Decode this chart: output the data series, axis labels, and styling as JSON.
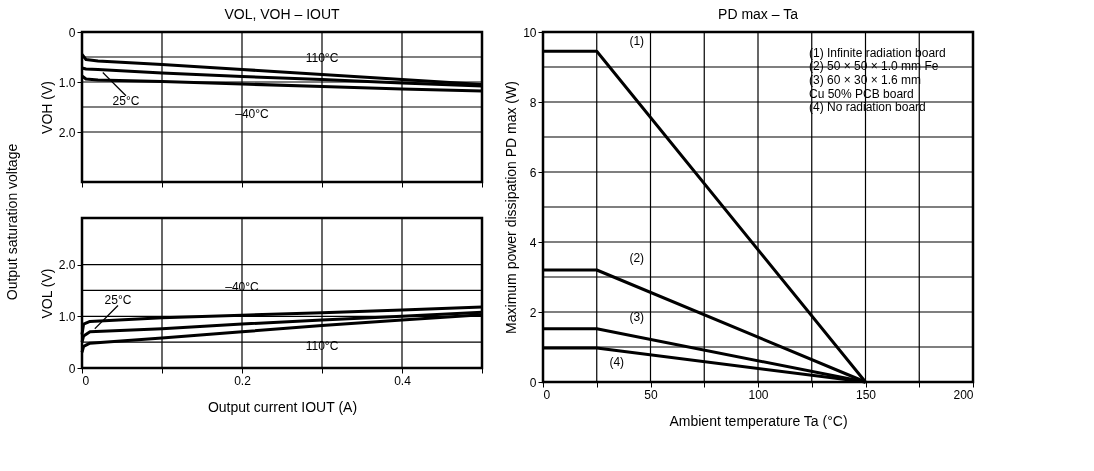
{
  "chart_data": [
    {
      "type": "line",
      "title": "VOL, VOH – IOUT",
      "ylabel": "VOH   (V)",
      "annotations": [
        "Output saturation voltage"
      ],
      "xlim": [
        0,
        0.5
      ],
      "xticks": [
        0,
        {
          "value": 0.1,
          "label": null
        },
        0.2,
        {
          "value": 0.3,
          "label": null
        },
        0.4,
        {
          "value": 0.5,
          "label": null
        }
      ],
      "ylim": [
        3.0,
        0
      ],
      "yticks": [
        0,
        {
          "value": 0.5,
          "label": null
        },
        {
          "value": 1,
          "label": "1.0"
        },
        {
          "value": 1.5,
          "label": null
        },
        {
          "value": 2,
          "label": "2.0"
        }
      ],
      "tick_labels": "y",
      "grid": true,
      "line_style": "solid",
      "marker": "none",
      "x": [
        0,
        0.005,
        0.02,
        0.1,
        0.2,
        0.3,
        0.4,
        0.5
      ],
      "series": [
        {
          "name": "110°C",
          "color": "#000000",
          "values": [
            0.45,
            0.55,
            0.58,
            0.65,
            0.75,
            0.85,
            0.95,
            1.05
          ]
        },
        {
          "name": "25°C",
          "color": "#000000",
          "values": [
            0.72,
            0.74,
            0.75,
            0.82,
            0.89,
            0.95,
            1.02,
            1.08
          ]
        },
        {
          "name": "–40°C",
          "color": "#000000",
          "values": [
            0.88,
            0.94,
            0.96,
            0.99,
            1.04,
            1.09,
            1.14,
            1.18
          ]
        }
      ]
    },
    {
      "type": "line",
      "xlabel": "Output current   IOUT   (A)",
      "ylabel": "VOL   (V)",
      "xlim": [
        0,
        0.5
      ],
      "xticks": [
        0,
        {
          "value": 0.1,
          "label": null
        },
        {
          "value": 0.2,
          "label": "0.2"
        },
        {
          "value": 0.3,
          "label": null
        },
        {
          "value": 0.4,
          "label": "0.4"
        },
        {
          "value": 0.5,
          "label": null
        }
      ],
      "ylim": [
        0,
        2.9
      ],
      "yticks": [
        0,
        {
          "value": 0.5,
          "label": null
        },
        {
          "value": 1,
          "label": "1.0"
        },
        {
          "value": 1.5,
          "label": null
        },
        {
          "value": 2,
          "label": "2.0"
        }
      ],
      "grid": true,
      "line_style": "solid",
      "marker": "none",
      "x": [
        0,
        0.002,
        0.01,
        0.1,
        0.2,
        0.3,
        0.4,
        0.5
      ],
      "series": [
        {
          "name": "110°C",
          "color": "#000000",
          "values": [
            0.3,
            0.42,
            0.48,
            0.58,
            0.7,
            0.82,
            0.93,
            1.03
          ]
        },
        {
          "name": "25°C",
          "color": "#000000",
          "values": [
            0.5,
            0.62,
            0.7,
            0.76,
            0.85,
            0.93,
            1.0,
            1.08
          ]
        },
        {
          "name": "–40°C",
          "color": "#000000",
          "values": [
            0.65,
            0.85,
            0.9,
            0.97,
            1.02,
            1.07,
            1.12,
            1.18
          ]
        }
      ]
    },
    {
      "type": "line",
      "title": "PD max – Ta",
      "xlabel": "Ambient temperature    Ta    (°C)",
      "ylabel": "Maximum power dissipation    PD max    (W)",
      "xlim": [
        0,
        200
      ],
      "xticks": [
        0,
        {
          "value": 25,
          "label": null
        },
        50,
        {
          "value": 75,
          "label": null
        },
        100,
        {
          "value": 125,
          "label": null
        },
        150,
        {
          "value": 175,
          "label": null
        },
        200
      ],
      "ylim": [
        0,
        10
      ],
      "yticks": [
        0,
        {
          "value": 1,
          "label": null
        },
        2,
        {
          "value": 3,
          "label": null
        },
        4,
        {
          "value": 5,
          "label": null
        },
        6,
        {
          "value": 7,
          "label": null
        },
        8,
        {
          "value": 9,
          "label": null
        },
        10
      ],
      "grid": true,
      "line_style": "solid",
      "marker": "none",
      "annotations": [
        "(1)   Infinite radiation board",
        "(2)   50 × 50 × 1.0 mm Fe",
        "(3)   60 × 30 × 1.6 mm",
        "        Cu 50% PCB board",
        "(4)   No radiation board"
      ],
      "x": [
        0,
        25,
        150
      ],
      "series": [
        {
          "name": "(1)",
          "color": "#000000",
          "values": [
            9.45,
            9.45,
            0
          ]
        },
        {
          "name": "(2)",
          "color": "#000000",
          "values": [
            3.2,
            3.2,
            0
          ]
        },
        {
          "name": "(3)",
          "color": "#000000",
          "values": [
            1.52,
            1.52,
            0
          ]
        },
        {
          "name": "(4)",
          "color": "#000000",
          "values": [
            0.97,
            0.97,
            0
          ]
        }
      ]
    }
  ]
}
